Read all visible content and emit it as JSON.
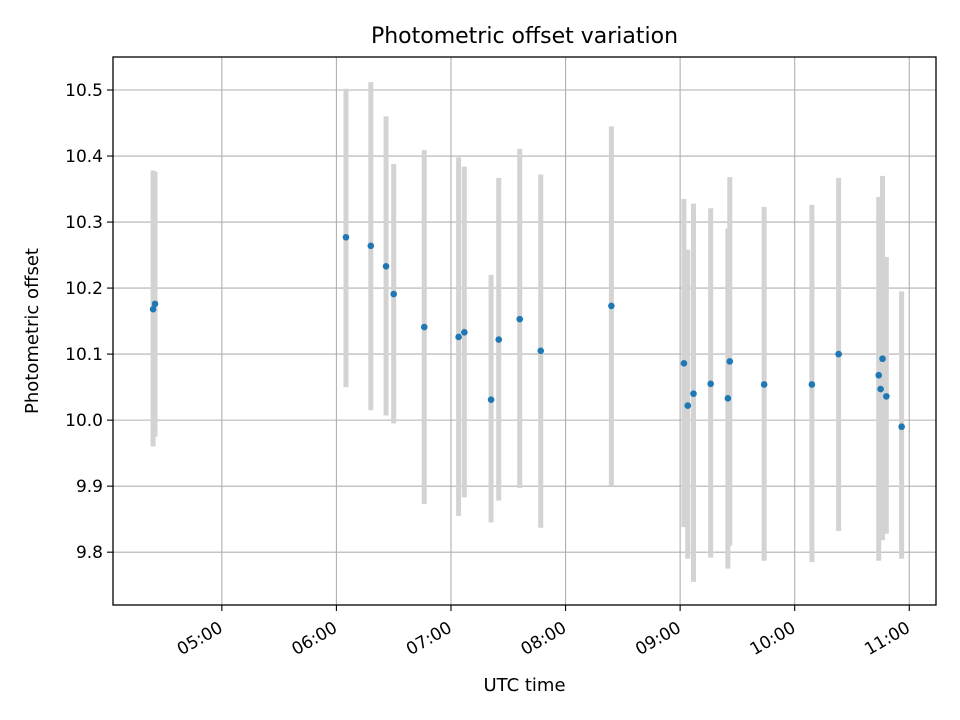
{
  "chart_data": {
    "type": "scatter",
    "title": "Photometric offset variation",
    "xlabel": "UTC time",
    "ylabel": "Photometric offset",
    "x_tick_labels": [
      "05:00",
      "06:00",
      "07:00",
      "08:00",
      "09:00",
      "10:00",
      "11:00"
    ],
    "x_ticks": [
      "05:00",
      "06:00",
      "07:00",
      "08:00",
      "09:00",
      "10:00",
      "11:00"
    ],
    "y_ticks": [
      9.8,
      9.9,
      10.0,
      10.1,
      10.2,
      10.3,
      10.4,
      10.5
    ],
    "y_tick_labels": [
      "9.8",
      "9.9",
      "10.0",
      "10.1",
      "10.2",
      "10.3",
      "10.4",
      "10.5"
    ],
    "xlim": [
      "04:03",
      "11:14"
    ],
    "ylim": [
      9.72,
      10.55
    ],
    "grid": true,
    "marker_color": "#1f77b4",
    "errorbar_color": "#d3d3d3",
    "points": [
      {
        "x": "04:24",
        "y": 10.168,
        "lo": 9.96,
        "hi": 10.378
      },
      {
        "x": "04:25",
        "y": 10.176,
        "lo": 9.975,
        "hi": 10.376
      },
      {
        "x": "06:05",
        "y": 10.277,
        "lo": 10.05,
        "hi": 10.502
      },
      {
        "x": "06:18",
        "y": 10.264,
        "lo": 10.015,
        "hi": 10.512
      },
      {
        "x": "06:26",
        "y": 10.233,
        "lo": 10.007,
        "hi": 10.46
      },
      {
        "x": "06:30",
        "y": 10.191,
        "lo": 9.995,
        "hi": 10.388
      },
      {
        "x": "06:46",
        "y": 10.141,
        "lo": 9.873,
        "hi": 10.409
      },
      {
        "x": "07:04",
        "y": 10.126,
        "lo": 9.855,
        "hi": 10.398
      },
      {
        "x": "07:07",
        "y": 10.133,
        "lo": 9.883,
        "hi": 10.384
      },
      {
        "x": "07:21",
        "y": 10.031,
        "lo": 9.845,
        "hi": 10.22
      },
      {
        "x": "07:25",
        "y": 10.122,
        "lo": 9.878,
        "hi": 10.367
      },
      {
        "x": "07:36",
        "y": 10.153,
        "lo": 9.897,
        "hi": 10.411
      },
      {
        "x": "07:47",
        "y": 10.105,
        "lo": 9.837,
        "hi": 10.372
      },
      {
        "x": "08:24",
        "y": 10.173,
        "lo": 9.9,
        "hi": 10.445
      },
      {
        "x": "09:02",
        "y": 10.086,
        "lo": 9.838,
        "hi": 10.335
      },
      {
        "x": "09:04",
        "y": 10.022,
        "lo": 9.79,
        "hi": 10.258
      },
      {
        "x": "09:07",
        "y": 10.04,
        "lo": 9.755,
        "hi": 10.328
      },
      {
        "x": "09:16",
        "y": 10.055,
        "lo": 9.792,
        "hi": 10.321
      },
      {
        "x": "09:25",
        "y": 10.033,
        "lo": 9.775,
        "hi": 10.29
      },
      {
        "x": "09:26",
        "y": 10.089,
        "lo": 9.81,
        "hi": 10.368
      },
      {
        "x": "09:44",
        "y": 10.054,
        "lo": 9.787,
        "hi": 10.323
      },
      {
        "x": "10:09",
        "y": 10.054,
        "lo": 9.785,
        "hi": 10.326
      },
      {
        "x": "10:23",
        "y": 10.1,
        "lo": 9.832,
        "hi": 10.367
      },
      {
        "x": "10:44",
        "y": 10.068,
        "lo": 9.787,
        "hi": 10.338
      },
      {
        "x": "10:45",
        "y": 10.047,
        "lo": 9.82,
        "hi": 10.27
      },
      {
        "x": "10:46",
        "y": 10.093,
        "lo": 9.818,
        "hi": 10.37
      },
      {
        "x": "10:48",
        "y": 10.036,
        "lo": 9.828,
        "hi": 10.247
      },
      {
        "x": "10:56",
        "y": 9.99,
        "lo": 9.79,
        "hi": 10.195
      }
    ]
  }
}
